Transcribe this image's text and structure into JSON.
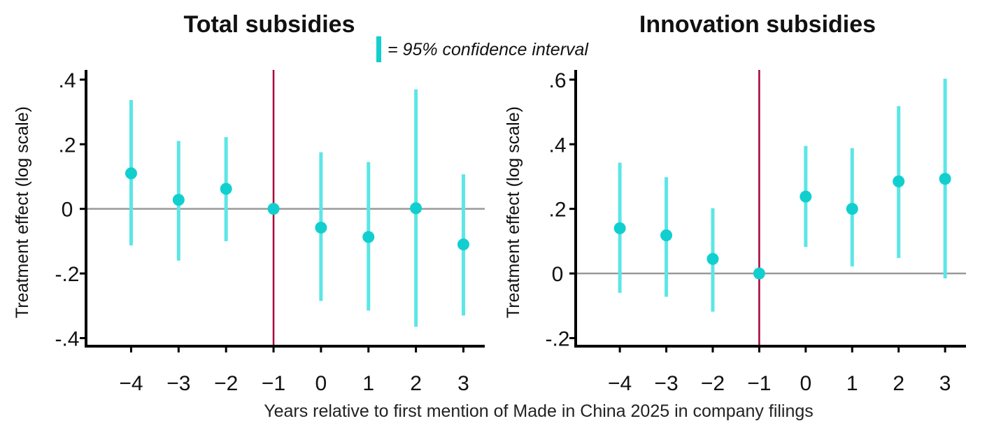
{
  "legend": {
    "text": "= 95% confidence interval"
  },
  "xlabel": "Years relative to first mention of Made in China 2025 in company filings",
  "colors": {
    "ci": "#5ce6e6",
    "point": "#12cfcf",
    "ref_line": "#a8003a",
    "zero_line": "#999999",
    "axis": "#000000"
  },
  "chart_data": [
    {
      "type": "scatter",
      "title": "Total subsidies",
      "ylabel": "Treatment effect (log scale)",
      "x": [
        -4,
        -3,
        -2,
        -1,
        0,
        1,
        2,
        3
      ],
      "x_tick_labels": [
        "−4",
        "−3",
        "−2",
        "−1",
        "0",
        "1",
        "2",
        "3"
      ],
      "y": [
        0.11,
        0.028,
        0.062,
        0.0,
        -0.058,
        -0.087,
        0.002,
        -0.11
      ],
      "ci_low": [
        -0.113,
        -0.16,
        -0.1,
        0.0,
        -0.285,
        -0.315,
        -0.365,
        -0.33
      ],
      "ci_high": [
        0.337,
        0.21,
        0.222,
        0.0,
        0.175,
        0.145,
        0.37,
        0.107
      ],
      "y_ticks": [
        0.4,
        0.2,
        0,
        -0.2,
        -0.4
      ],
      "y_tick_labels": [
        ".4",
        ".2",
        "0",
        "-.2",
        "-.4"
      ],
      "ylim": [
        -0.425,
        0.43
      ],
      "xlim": [
        -4.95,
        3.45
      ],
      "ref_x": -1,
      "zero_line_y": 0
    },
    {
      "type": "scatter",
      "title": "Innovation subsidies",
      "ylabel": "Treatment effect (log scale)",
      "x": [
        -4,
        -3,
        -2,
        -1,
        0,
        1,
        2,
        3
      ],
      "x_tick_labels": [
        "−4",
        "−3",
        "−2",
        "−1",
        "0",
        "1",
        "2",
        "3"
      ],
      "y": [
        0.14,
        0.118,
        0.045,
        0.0,
        0.238,
        0.2,
        0.285,
        0.293
      ],
      "ci_low": [
        -0.06,
        -0.072,
        -0.118,
        0.0,
        0.082,
        0.022,
        0.048,
        -0.015
      ],
      "ci_high": [
        0.343,
        0.298,
        0.202,
        0.0,
        0.395,
        0.388,
        0.518,
        0.603
      ],
      "y_ticks": [
        0.6,
        0.4,
        0.2,
        0,
        -0.2
      ],
      "y_tick_labels": [
        ".6",
        ".4",
        ".2",
        "0",
        "-.2"
      ],
      "ylim": [
        -0.225,
        0.63
      ],
      "xlim": [
        -4.95,
        3.45
      ],
      "ref_x": -1,
      "zero_line_y": 0
    }
  ]
}
